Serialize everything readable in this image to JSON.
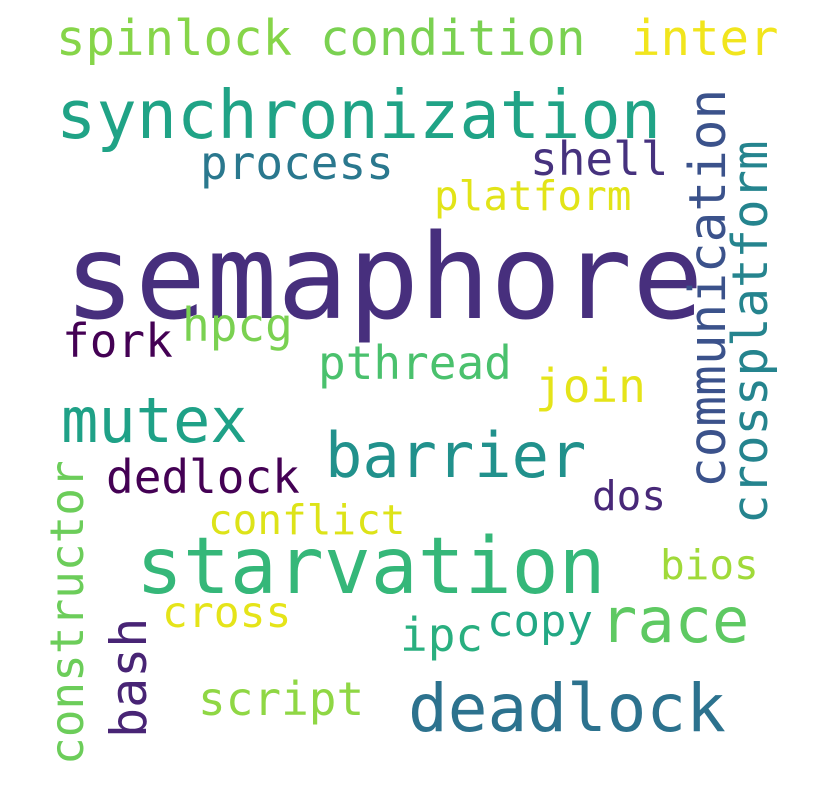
{
  "words": {
    "semaphore": {
      "text": "semaphore",
      "color": "#472f7d"
    },
    "synchronization": {
      "text": "synchronization",
      "color": "#20a386"
    },
    "starvation": {
      "text": "starvation",
      "color": "#35b779"
    },
    "deadlock": {
      "text": "deadlock",
      "color": "#2c728e"
    },
    "barrier": {
      "text": "barrier",
      "color": "#21918c"
    },
    "mutex": {
      "text": "mutex",
      "color": "#1fa187"
    },
    "race": {
      "text": "race",
      "color": "#5ec962"
    },
    "communication": {
      "text": "communication",
      "color": "#3b528b"
    },
    "crossplatform": {
      "text": "crossplatform",
      "color": "#25848e"
    },
    "spinlock": {
      "text": "spinlock",
      "color": "#86d549"
    },
    "condition": {
      "text": "condition",
      "color": "#7ad151"
    },
    "inter": {
      "text": "inter",
      "color": "#f1e51d"
    },
    "process": {
      "text": "process",
      "color": "#2a788e"
    },
    "shell": {
      "text": "shell",
      "color": "#46327e"
    },
    "platform": {
      "text": "platform",
      "color": "#e2e418"
    },
    "fork": {
      "text": "fork",
      "color": "#440154"
    },
    "hpcg": {
      "text": "hpcg",
      "color": "#7ad151"
    },
    "pthread": {
      "text": "pthread",
      "color": "#4ac16d"
    },
    "join": {
      "text": "join",
      "color": "#e5e419"
    },
    "dedlock": {
      "text": "dedlock",
      "color": "#440154"
    },
    "dos": {
      "text": "dos",
      "color": "#482878"
    },
    "conflict": {
      "text": "conflict",
      "color": "#dde318"
    },
    "constructor": {
      "text": "constructor",
      "color": "#6ccd5a"
    },
    "bios": {
      "text": "bios",
      "color": "#a0da39"
    },
    "cross": {
      "text": "cross",
      "color": "#e5e419"
    },
    "copy": {
      "text": "copy",
      "color": "#22a884"
    },
    "ipc": {
      "text": "ipc",
      "color": "#29af7f"
    },
    "bash": {
      "text": "bash",
      "color": "#482475"
    },
    "script": {
      "text": "script",
      "color": "#8fd744"
    }
  }
}
